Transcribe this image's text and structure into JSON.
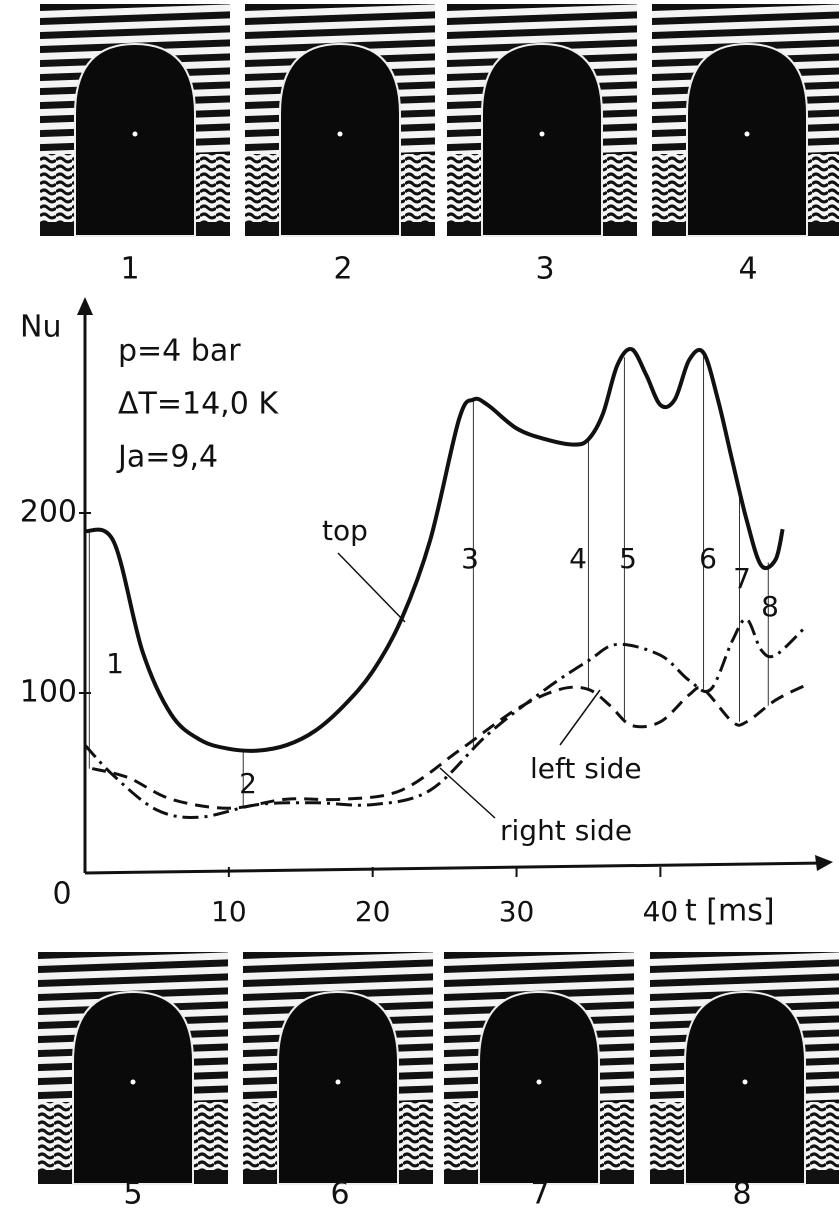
{
  "chart_data": {
    "type": "line",
    "annotations": [
      "p=4 bar",
      "ΔT=14,0 K",
      "Ja=9,4"
    ],
    "ylabel": "Nu",
    "xlabel": "t [ms]",
    "xlim": [
      0,
      52
    ],
    "ylim": [
      0,
      320
    ],
    "xticks": [
      0,
      10,
      20,
      30,
      40
    ],
    "yticks": [
      0,
      100,
      200
    ],
    "series": [
      {
        "name": "top",
        "color": "#111111",
        "dash": "solid",
        "x": [
          0,
          2,
          4,
          6,
          8,
          10,
          12,
          14,
          16,
          18,
          20,
          22,
          24,
          26,
          27,
          28,
          30,
          32,
          34,
          35,
          36,
          37,
          38,
          39,
          40,
          41,
          42,
          43,
          44,
          45,
          46,
          47,
          48,
          48.5
        ],
        "values": [
          190,
          184,
          123,
          88,
          74,
          69,
          68,
          71,
          79,
          93,
          112,
          141,
          185,
          252,
          263,
          260,
          247,
          241,
          238,
          241,
          255,
          282,
          291,
          277,
          260,
          263,
          285,
          289,
          263,
          229,
          196,
          171,
          174,
          191
        ]
      },
      {
        "name": "left side",
        "color": "#111111",
        "dash": "dashed",
        "x": [
          0.5,
          3,
          6,
          10,
          14,
          18,
          22,
          26,
          30,
          33,
          35,
          36.5,
          38,
          40,
          42,
          43,
          45,
          46,
          48,
          50
        ],
        "values": [
          58,
          53,
          41,
          36,
          41,
          41,
          46,
          68,
          91,
          102,
          102,
          93,
          82,
          84,
          99,
          102,
          84,
          84,
          96,
          104
        ]
      },
      {
        "name": "right side",
        "color": "#111111",
        "dash": "dashdot",
        "x": [
          0,
          2,
          5,
          8,
          12,
          16,
          20,
          24,
          28,
          32,
          35,
          37,
          40,
          42,
          43.5,
          45,
          46,
          47,
          48,
          50
        ],
        "values": [
          71,
          54,
          35,
          31,
          38,
          39,
          38,
          46,
          77,
          102,
          118,
          127,
          121,
          107,
          102,
          129,
          141,
          124,
          121,
          136
        ]
      }
    ],
    "events": [
      {
        "label": "1",
        "t": 0.3
      },
      {
        "label": "2",
        "t": 11
      },
      {
        "label": "3",
        "t": 27
      },
      {
        "label": "4",
        "t": 35
      },
      {
        "label": "5",
        "t": 37.5
      },
      {
        "label": "6",
        "t": 43
      },
      {
        "label": "7",
        "t": 45.5
      },
      {
        "label": "8",
        "t": 47.5
      }
    ]
  }
}
